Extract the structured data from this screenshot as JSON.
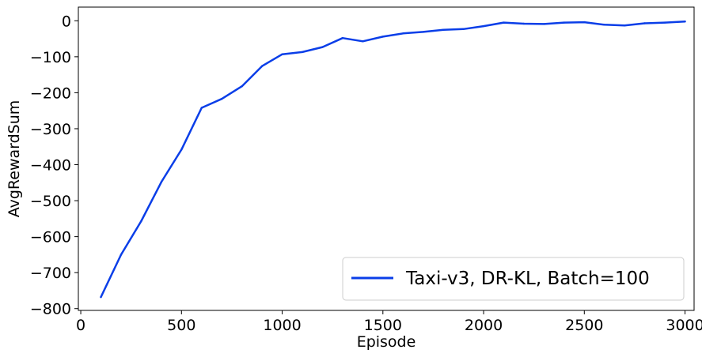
{
  "chart_data": {
    "type": "line",
    "xlabel": "Episode",
    "ylabel": "AvgRewardSum",
    "xlim": [
      -12,
      3045
    ],
    "ylim": [
      -805,
      38
    ],
    "xticks": [
      0,
      500,
      1000,
      1500,
      2000,
      2500,
      3000
    ],
    "xtick_labels": [
      "0",
      "500",
      "1000",
      "1500",
      "2000",
      "2500",
      "3000"
    ],
    "yticks": [
      0,
      -100,
      -200,
      -300,
      -400,
      -500,
      -600,
      -700,
      -800
    ],
    "ytick_labels": [
      "0",
      "−100",
      "−200",
      "−300",
      "−400",
      "−500",
      "−600",
      "−700",
      "−800"
    ],
    "grid": false,
    "legend_position": "lower-right",
    "series": [
      {
        "name": "Taxi-v3, DR-KL, Batch=100",
        "color": "#0a3ee8",
        "x": [
          100,
          200,
          300,
          400,
          500,
          600,
          700,
          800,
          900,
          1000,
          1100,
          1200,
          1300,
          1400,
          1500,
          1600,
          1700,
          1800,
          1900,
          2000,
          2100,
          2200,
          2300,
          2400,
          2500,
          2600,
          2700,
          2800,
          2900,
          3000
        ],
        "y": [
          -768,
          -650,
          -557,
          -448,
          -358,
          -242,
          -217,
          -182,
          -126,
          -93,
          -87,
          -73,
          -48,
          -57,
          -44,
          -35,
          -31,
          -25,
          -23,
          -15,
          -5,
          -8,
          -9,
          -5,
          -4,
          -11,
          -13,
          -7,
          -5,
          -2
        ]
      }
    ]
  }
}
